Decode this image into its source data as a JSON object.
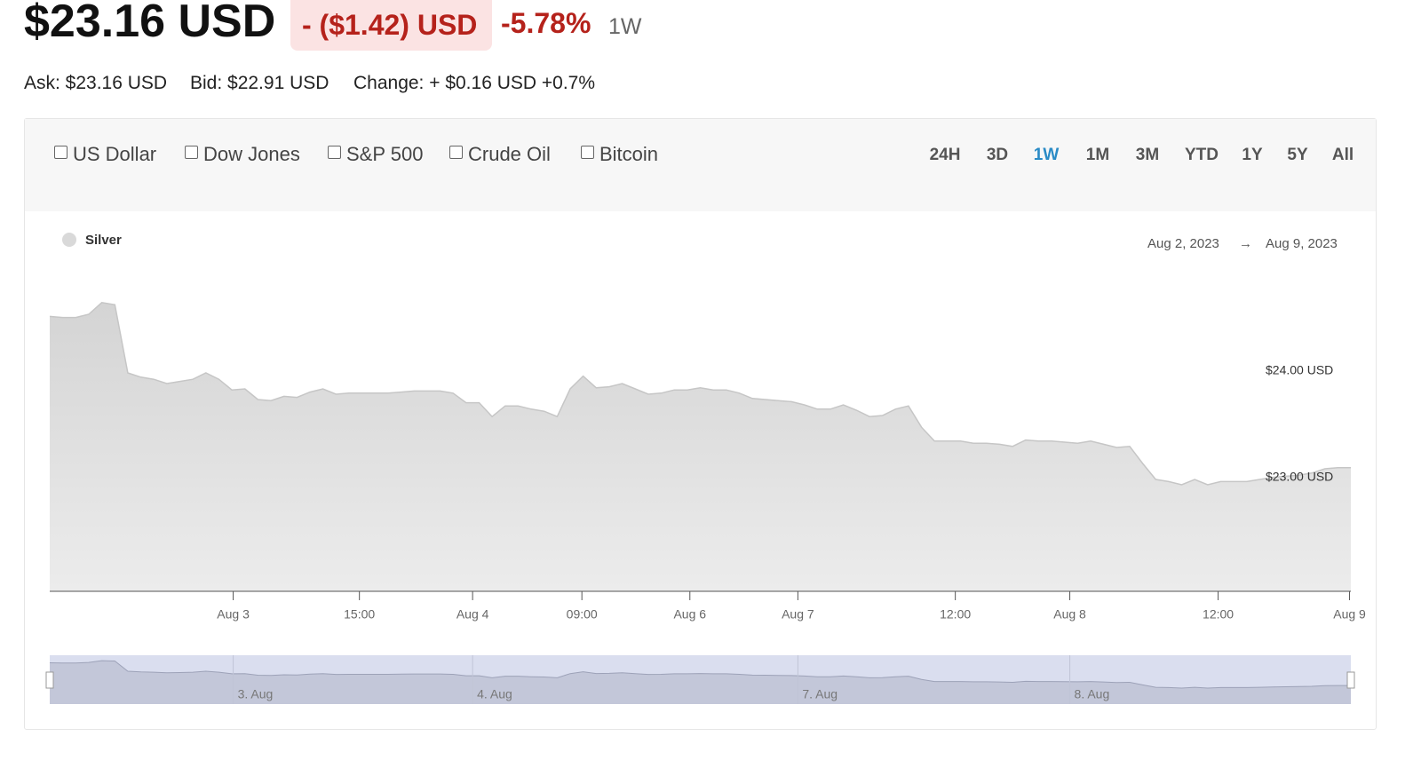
{
  "header": {
    "price": "$23.16 USD",
    "change": "- ($1.42) USD",
    "change_pct": "-5.78%",
    "period": "1W"
  },
  "quote": {
    "ask": "Ask: $23.16 USD",
    "bid": "Bid: $22.91 USD",
    "change": "Change: + $0.16 USD +0.7%"
  },
  "toolbar": {
    "compare": [
      "US Dollar",
      "Dow Jones",
      "S&P 500",
      "Crude Oil",
      "Bitcoin"
    ],
    "ranges": [
      "24H",
      "3D",
      "1W",
      "1M",
      "3M",
      "YTD",
      "1Y",
      "5Y",
      "All"
    ],
    "active_range": 2
  },
  "chart_data": {
    "type": "area",
    "date_from": "Aug 2, 2023",
    "arrow": "→",
    "date_to": "Aug 9, 2023",
    "series": [
      {
        "name": "Silver",
        "color": "#d9d9d9",
        "values": [
          24.51,
          24.5,
          24.5,
          24.53,
          24.64,
          24.62,
          23.98,
          23.94,
          23.92,
          23.88,
          23.9,
          23.92,
          23.98,
          23.92,
          23.82,
          23.83,
          23.73,
          23.72,
          23.76,
          23.75,
          23.8,
          23.83,
          23.78,
          23.79,
          23.79,
          23.79,
          23.79,
          23.8,
          23.81,
          23.81,
          23.81,
          23.79,
          23.7,
          23.7,
          23.57,
          23.67,
          23.67,
          23.64,
          23.62,
          23.57,
          23.83,
          23.95,
          23.84,
          23.85,
          23.88,
          23.83,
          23.78,
          23.79,
          23.82,
          23.82,
          23.84,
          23.82,
          23.82,
          23.79,
          23.74,
          23.73,
          23.72,
          23.71,
          23.68,
          23.64,
          23.64,
          23.68,
          23.63,
          23.57,
          23.58,
          23.64,
          23.67,
          23.47,
          23.34,
          23.34,
          23.34,
          23.32,
          23.32,
          23.31,
          23.29,
          23.35,
          23.34,
          23.34,
          23.33,
          23.32,
          23.34,
          23.31,
          23.28,
          23.29,
          23.13,
          22.98,
          22.96,
          22.93,
          22.98,
          22.93,
          22.96,
          22.96,
          22.96,
          22.98,
          23.0,
          23.01,
          23.02,
          23.04,
          23.08,
          23.09,
          23.09
        ]
      }
    ],
    "xlim": [
      0,
      100
    ],
    "xticks": [
      {
        "value": 14.1,
        "label": "Aug 3"
      },
      {
        "value": 23.8,
        "label": "15:00"
      },
      {
        "value": 32.5,
        "label": "Aug 4"
      },
      {
        "value": 40.9,
        "label": "09:00"
      },
      {
        "value": 49.2,
        "label": "Aug 6"
      },
      {
        "value": 57.5,
        "label": "Aug 7"
      },
      {
        "value": 69.6,
        "label": "12:00"
      },
      {
        "value": 78.4,
        "label": "Aug 8"
      },
      {
        "value": 89.8,
        "label": "12:00"
      },
      {
        "value": 99.9,
        "label": "Aug 9"
      }
    ],
    "ylim": [
      21.93,
      24.98
    ],
    "yticks": [
      {
        "value": 24,
        "label": "$24.00 USD"
      },
      {
        "value": 23,
        "label": "$23.00 USD"
      }
    ],
    "grid": false,
    "navigator_ticks": [
      {
        "value": 14.1,
        "label": "3. Aug"
      },
      {
        "value": 32.5,
        "label": "4. Aug"
      },
      {
        "value": 57.5,
        "label": "7. Aug"
      },
      {
        "value": 78.4,
        "label": "8. Aug"
      }
    ]
  }
}
